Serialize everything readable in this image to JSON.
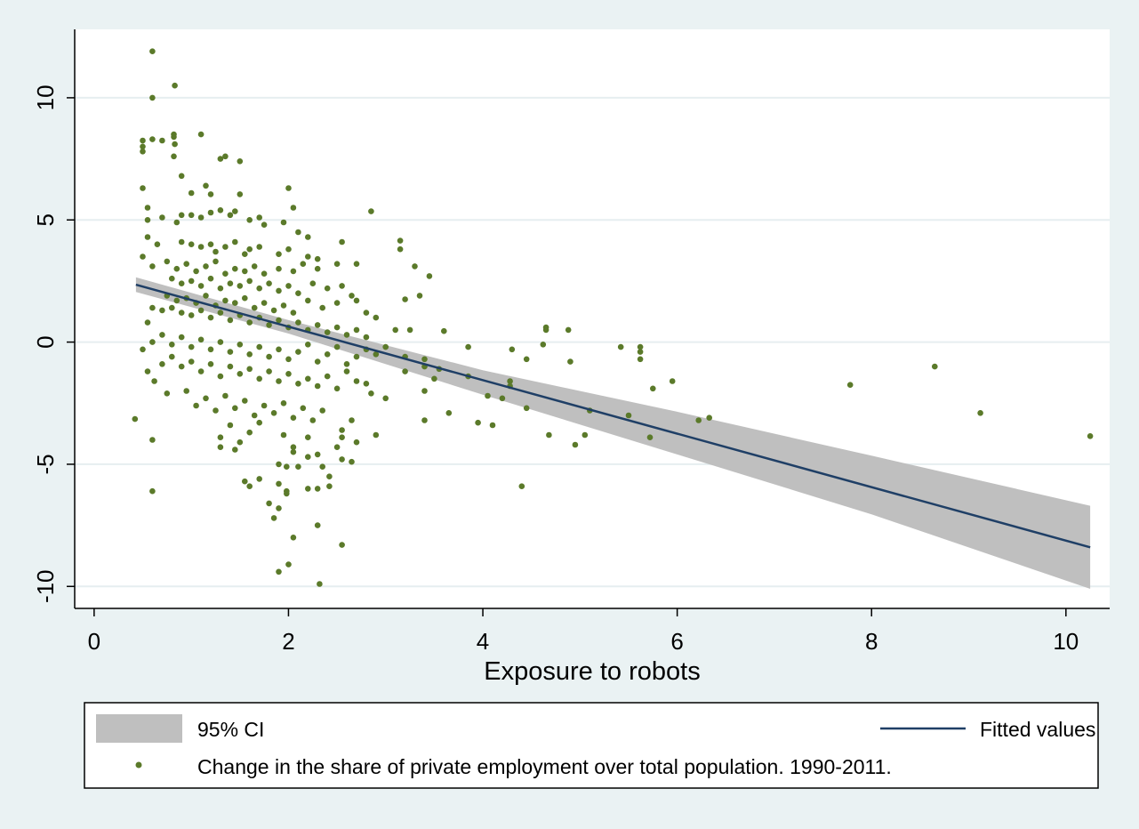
{
  "chart_data": {
    "type": "scatter",
    "xlabel": "Exposure to robots",
    "ylabel": "",
    "xlim": [
      -0.2,
      10.45
    ],
    "ylim": [
      -10.9,
      12.8
    ],
    "x_ticks": [
      0,
      2,
      4,
      6,
      8,
      10
    ],
    "y_ticks": [
      -10,
      -5,
      0,
      5,
      10
    ],
    "grid": "horizontal",
    "legend_position": "bottom",
    "colors": {
      "points": "#5b7a2a",
      "fit_line": "#1f3f66",
      "ci_band": "#bfbfbf",
      "plot_background": "#ffffff",
      "outer_background": "#eaf2f3",
      "grid": "#e6eef0"
    },
    "legend": {
      "ci": "95% CI",
      "fit": "Fitted values",
      "points": "Change in the share of private employment over total population. 1990-2011."
    },
    "series": [
      {
        "name": "Fitted values",
        "type": "line",
        "x": [
          0.43,
          10.25
        ],
        "y": [
          2.35,
          -8.4
        ]
      },
      {
        "name": "95% CI",
        "type": "area",
        "x": [
          0.43,
          2.0,
          4.0,
          6.0,
          8.0,
          10.25
        ],
        "lower": [
          2.05,
          0.35,
          -2.15,
          -4.6,
          -7.05,
          -10.1
        ],
        "upper": [
          2.65,
          0.9,
          -1.15,
          -2.85,
          -4.65,
          -6.7
        ]
      },
      {
        "name": "Change in the share of private employment over total population. 1990-2011.",
        "type": "scatter",
        "points": [
          [
            0.6,
            11.9
          ],
          [
            0.83,
            10.5
          ],
          [
            0.6,
            10.0
          ],
          [
            0.5,
            8.25
          ],
          [
            0.5,
            8.0
          ],
          [
            0.6,
            8.3
          ],
          [
            0.7,
            8.25
          ],
          [
            0.82,
            8.5
          ],
          [
            0.82,
            8.4
          ],
          [
            0.83,
            8.1
          ],
          [
            1.1,
            8.5
          ],
          [
            1.3,
            7.5
          ],
          [
            1.35,
            7.6
          ],
          [
            1.5,
            7.4
          ],
          [
            0.5,
            7.8
          ],
          [
            0.82,
            7.6
          ],
          [
            0.9,
            6.8
          ],
          [
            0.5,
            6.3
          ],
          [
            1.0,
            6.1
          ],
          [
            1.15,
            6.4
          ],
          [
            1.2,
            6.05
          ],
          [
            1.5,
            6.05
          ],
          [
            2.0,
            6.3
          ],
          [
            0.55,
            5.5
          ],
          [
            0.55,
            5.0
          ],
          [
            0.7,
            5.1
          ],
          [
            0.85,
            4.9
          ],
          [
            0.9,
            5.2
          ],
          [
            1.0,
            5.2
          ],
          [
            1.1,
            5.1
          ],
          [
            1.2,
            5.3
          ],
          [
            1.3,
            5.4
          ],
          [
            1.4,
            5.2
          ],
          [
            1.45,
            5.35
          ],
          [
            1.6,
            5.0
          ],
          [
            1.7,
            5.1
          ],
          [
            1.75,
            4.8
          ],
          [
            1.95,
            4.9
          ],
          [
            2.05,
            5.5
          ],
          [
            2.85,
            5.35
          ],
          [
            2.1,
            4.5
          ],
          [
            2.2,
            4.3
          ],
          [
            2.55,
            4.1
          ],
          [
            3.15,
            4.15
          ],
          [
            0.55,
            4.3
          ],
          [
            0.65,
            4.0
          ],
          [
            0.9,
            4.1
          ],
          [
            1.0,
            4.0
          ],
          [
            1.1,
            3.9
          ],
          [
            1.2,
            4.0
          ],
          [
            1.25,
            3.7
          ],
          [
            1.35,
            3.9
          ],
          [
            1.45,
            4.1
          ],
          [
            1.55,
            3.6
          ],
          [
            1.6,
            3.8
          ],
          [
            1.7,
            3.9
          ],
          [
            1.9,
            3.6
          ],
          [
            2.0,
            3.8
          ],
          [
            2.2,
            3.5
          ],
          [
            2.3,
            3.4
          ],
          [
            3.15,
            3.8
          ],
          [
            0.5,
            3.5
          ],
          [
            0.6,
            3.1
          ],
          [
            0.75,
            3.3
          ],
          [
            0.85,
            3.0
          ],
          [
            0.95,
            3.2
          ],
          [
            1.05,
            2.9
          ],
          [
            1.15,
            3.1
          ],
          [
            1.25,
            3.3
          ],
          [
            1.35,
            2.8
          ],
          [
            1.45,
            3.0
          ],
          [
            1.55,
            2.9
          ],
          [
            1.65,
            3.1
          ],
          [
            1.75,
            2.8
          ],
          [
            1.9,
            3.0
          ],
          [
            2.05,
            2.9
          ],
          [
            2.15,
            3.2
          ],
          [
            2.3,
            3.0
          ],
          [
            2.5,
            3.2
          ],
          [
            2.7,
            3.2
          ],
          [
            3.3,
            3.1
          ],
          [
            3.45,
            2.7
          ],
          [
            0.8,
            2.6
          ],
          [
            0.9,
            2.4
          ],
          [
            1.0,
            2.5
          ],
          [
            1.1,
            2.3
          ],
          [
            1.2,
            2.6
          ],
          [
            1.3,
            2.2
          ],
          [
            1.4,
            2.4
          ],
          [
            1.5,
            2.3
          ],
          [
            1.6,
            2.5
          ],
          [
            1.7,
            2.2
          ],
          [
            1.8,
            2.4
          ],
          [
            1.9,
            2.1
          ],
          [
            2.0,
            2.3
          ],
          [
            2.1,
            2.0
          ],
          [
            2.25,
            2.4
          ],
          [
            2.4,
            2.2
          ],
          [
            2.55,
            2.3
          ],
          [
            2.65,
            1.9
          ],
          [
            0.75,
            1.9
          ],
          [
            0.85,
            1.7
          ],
          [
            0.95,
            1.8
          ],
          [
            1.05,
            1.6
          ],
          [
            1.15,
            1.9
          ],
          [
            1.25,
            1.5
          ],
          [
            1.35,
            1.7
          ],
          [
            1.45,
            1.6
          ],
          [
            1.55,
            1.8
          ],
          [
            1.65,
            1.4
          ],
          [
            1.75,
            1.6
          ],
          [
            1.85,
            1.3
          ],
          [
            1.95,
            1.5
          ],
          [
            2.05,
            1.2
          ],
          [
            2.2,
            1.7
          ],
          [
            2.35,
            1.4
          ],
          [
            2.5,
            1.6
          ],
          [
            2.7,
            1.7
          ],
          [
            2.8,
            1.2
          ],
          [
            2.9,
            1.0
          ],
          [
            3.2,
            1.75
          ],
          [
            3.35,
            1.9
          ],
          [
            0.6,
            1.4
          ],
          [
            0.7,
            1.3
          ],
          [
            0.8,
            1.4
          ],
          [
            0.9,
            1.2
          ],
          [
            1.0,
            1.1
          ],
          [
            1.1,
            1.3
          ],
          [
            1.2,
            1.0
          ],
          [
            1.3,
            1.2
          ],
          [
            1.4,
            0.9
          ],
          [
            1.5,
            1.1
          ],
          [
            1.6,
            0.8
          ],
          [
            1.7,
            1.0
          ],
          [
            1.8,
            0.7
          ],
          [
            1.9,
            0.9
          ],
          [
            2.0,
            0.6
          ],
          [
            2.1,
            0.8
          ],
          [
            2.2,
            0.5
          ],
          [
            2.3,
            0.7
          ],
          [
            2.4,
            0.4
          ],
          [
            2.5,
            0.6
          ],
          [
            2.6,
            0.3
          ],
          [
            2.7,
            0.5
          ],
          [
            2.8,
            0.2
          ],
          [
            3.1,
            0.5
          ],
          [
            3.25,
            0.5
          ],
          [
            3.6,
            0.45
          ],
          [
            4.65,
            0.6
          ],
          [
            4.65,
            0.5
          ],
          [
            4.88,
            0.5
          ],
          [
            0.55,
            0.8
          ],
          [
            0.6,
            0.0
          ],
          [
            0.7,
            0.3
          ],
          [
            0.8,
            -0.1
          ],
          [
            0.9,
            0.2
          ],
          [
            1.0,
            -0.2
          ],
          [
            1.1,
            0.1
          ],
          [
            1.2,
            -0.3
          ],
          [
            1.3,
            0.0
          ],
          [
            1.4,
            -0.4
          ],
          [
            1.5,
            -0.1
          ],
          [
            1.6,
            -0.5
          ],
          [
            1.7,
            -0.2
          ],
          [
            1.8,
            -0.6
          ],
          [
            1.9,
            -0.3
          ],
          [
            2.0,
            -0.7
          ],
          [
            2.1,
            -0.4
          ],
          [
            2.2,
            -0.1
          ],
          [
            2.3,
            -0.8
          ],
          [
            2.4,
            -0.5
          ],
          [
            2.5,
            -0.2
          ],
          [
            2.6,
            -0.9
          ],
          [
            2.7,
            -0.6
          ],
          [
            2.8,
            -0.3
          ],
          [
            2.9,
            -0.5
          ],
          [
            3.0,
            -0.2
          ],
          [
            3.2,
            -0.6
          ],
          [
            3.4,
            -0.7
          ],
          [
            3.4,
            -1.0
          ],
          [
            3.55,
            -1.1
          ],
          [
            3.85,
            -0.2
          ],
          [
            4.3,
            -0.3
          ],
          [
            4.45,
            -0.7
          ],
          [
            4.62,
            -0.1
          ],
          [
            4.9,
            -0.8
          ],
          [
            5.42,
            -0.2
          ],
          [
            5.62,
            -0.2
          ],
          [
            5.62,
            -0.4
          ],
          [
            5.62,
            -0.7
          ],
          [
            0.5,
            -0.3
          ],
          [
            0.55,
            -1.2
          ],
          [
            0.7,
            -0.9
          ],
          [
            0.8,
            -0.6
          ],
          [
            0.9,
            -1.0
          ],
          [
            1.0,
            -0.8
          ],
          [
            1.1,
            -1.2
          ],
          [
            1.2,
            -0.9
          ],
          [
            1.3,
            -1.4
          ],
          [
            1.4,
            -1.0
          ],
          [
            1.5,
            -1.3
          ],
          [
            1.6,
            -1.1
          ],
          [
            1.7,
            -1.5
          ],
          [
            1.8,
            -1.2
          ],
          [
            1.9,
            -1.6
          ],
          [
            2.0,
            -1.3
          ],
          [
            2.1,
            -1.7
          ],
          [
            2.2,
            -1.5
          ],
          [
            2.3,
            -1.8
          ],
          [
            2.4,
            -1.4
          ],
          [
            2.5,
            -1.9
          ],
          [
            2.6,
            -1.2
          ],
          [
            2.7,
            -1.6
          ],
          [
            2.8,
            -1.7
          ],
          [
            3.0,
            -2.3
          ],
          [
            3.2,
            -1.2
          ],
          [
            3.4,
            -2.0
          ],
          [
            3.5,
            -1.5
          ],
          [
            3.85,
            -1.4
          ],
          [
            4.05,
            -2.2
          ],
          [
            4.2,
            -2.3
          ],
          [
            4.28,
            -1.6
          ],
          [
            4.28,
            -1.8
          ],
          [
            5.75,
            -1.9
          ],
          [
            5.95,
            -1.6
          ],
          [
            7.78,
            -1.75
          ],
          [
            8.65,
            -1.0
          ],
          [
            0.62,
            -1.6
          ],
          [
            0.75,
            -2.1
          ],
          [
            0.95,
            -2.0
          ],
          [
            1.05,
            -2.6
          ],
          [
            1.15,
            -2.3
          ],
          [
            1.25,
            -2.8
          ],
          [
            1.35,
            -2.2
          ],
          [
            1.45,
            -2.7
          ],
          [
            1.55,
            -2.4
          ],
          [
            1.65,
            -3.0
          ],
          [
            1.75,
            -2.6
          ],
          [
            1.85,
            -2.9
          ],
          [
            1.95,
            -2.5
          ],
          [
            2.05,
            -3.1
          ],
          [
            2.15,
            -2.7
          ],
          [
            2.25,
            -3.2
          ],
          [
            2.35,
            -2.8
          ],
          [
            2.55,
            -3.6
          ],
          [
            2.65,
            -3.2
          ],
          [
            2.85,
            -2.1
          ],
          [
            2.9,
            -3.8
          ],
          [
            3.65,
            -2.9
          ],
          [
            3.95,
            -3.3
          ],
          [
            4.1,
            -3.4
          ],
          [
            4.45,
            -2.7
          ],
          [
            5.1,
            -2.8
          ],
          [
            5.5,
            -3.0
          ],
          [
            6.22,
            -3.2
          ],
          [
            6.33,
            -3.1
          ],
          [
            9.12,
            -2.9
          ],
          [
            0.42,
            -3.15
          ],
          [
            1.3,
            -3.9
          ],
          [
            1.4,
            -3.4
          ],
          [
            1.5,
            -4.1
          ],
          [
            1.6,
            -3.7
          ],
          [
            1.7,
            -3.3
          ],
          [
            1.95,
            -3.8
          ],
          [
            2.05,
            -4.3
          ],
          [
            2.2,
            -3.9
          ],
          [
            2.3,
            -4.6
          ],
          [
            2.55,
            -3.9
          ],
          [
            2.7,
            -4.1
          ],
          [
            3.4,
            -3.2
          ],
          [
            4.68,
            -3.8
          ],
          [
            4.95,
            -4.2
          ],
          [
            5.05,
            -3.8
          ],
          [
            5.72,
            -3.9
          ],
          [
            10.25,
            -3.85
          ],
          [
            0.6,
            -4.0
          ],
          [
            1.3,
            -4.3
          ],
          [
            1.45,
            -4.4
          ],
          [
            1.9,
            -5.0
          ],
          [
            1.98,
            -5.1
          ],
          [
            2.05,
            -4.5
          ],
          [
            2.1,
            -5.1
          ],
          [
            2.2,
            -4.7
          ],
          [
            2.35,
            -5.1
          ],
          [
            2.5,
            -4.3
          ],
          [
            2.55,
            -4.8
          ],
          [
            2.65,
            -4.9
          ],
          [
            0.6,
            -6.1
          ],
          [
            1.55,
            -5.7
          ],
          [
            1.6,
            -5.9
          ],
          [
            1.7,
            -5.6
          ],
          [
            1.8,
            -6.6
          ],
          [
            1.9,
            -5.8
          ],
          [
            1.98,
            -6.1
          ],
          [
            1.98,
            -6.2
          ],
          [
            2.2,
            -6.0
          ],
          [
            2.3,
            -6.0
          ],
          [
            2.42,
            -5.5
          ],
          [
            2.42,
            -5.9
          ],
          [
            4.4,
            -5.9
          ],
          [
            1.85,
            -7.2
          ],
          [
            1.9,
            -6.8
          ],
          [
            2.05,
            -8.0
          ],
          [
            2.3,
            -7.5
          ],
          [
            2.55,
            -8.3
          ],
          [
            1.9,
            -9.4
          ],
          [
            2.0,
            -9.1
          ],
          [
            2.32,
            -9.9
          ]
        ]
      }
    ]
  }
}
